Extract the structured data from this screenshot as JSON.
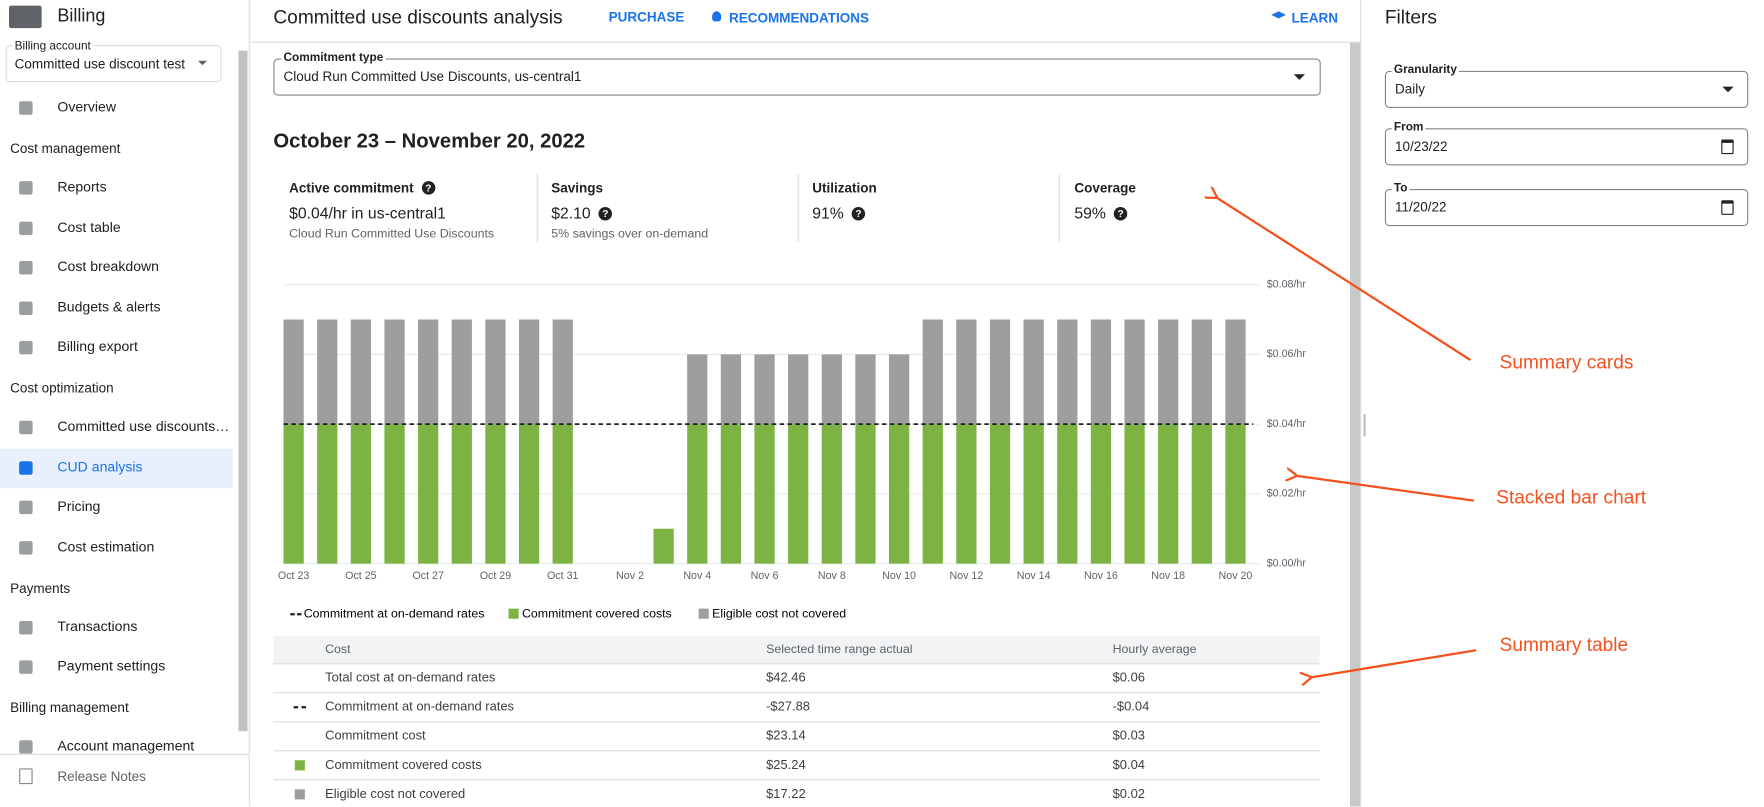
{
  "app": {
    "title": "Billing"
  },
  "sidebar": {
    "account": {
      "label": "Billing account",
      "value": "Committed use discount test"
    },
    "sections": [
      {
        "items": [
          "Overview"
        ]
      },
      {
        "title": "Cost management",
        "items": [
          "Reports",
          "Cost table",
          "Cost breakdown",
          "Budgets & alerts",
          "Billing export"
        ]
      },
      {
        "title": "Cost optimization",
        "items": [
          "Committed use discounts…",
          "CUD analysis",
          "Pricing",
          "Cost estimation"
        ]
      },
      {
        "title": "Payments",
        "items": [
          "Transactions",
          "Payment settings"
        ]
      },
      {
        "title": "Billing management",
        "items": [
          "Account management"
        ]
      }
    ],
    "active": "CUD analysis",
    "footer": "Release Notes"
  },
  "header": {
    "title": "Committed use discounts analysis",
    "tabs": [
      "PURCHASE",
      "RECOMMENDATIONS"
    ],
    "learn": "LEARN"
  },
  "commitment_type": {
    "label": "Commitment type",
    "value": "Cloud Run Committed Use Discounts, us-central1"
  },
  "date_range": "October 23 – November 20, 2022",
  "cards": [
    {
      "title": "Active commitment",
      "value": "$0.04/hr in us-central1",
      "note": "Cloud Run Committed Use Discounts"
    },
    {
      "title": "Savings",
      "value": "$2.10",
      "note": "5% savings over on-demand"
    },
    {
      "title": "Utilization",
      "value": "91%"
    },
    {
      "title": "Coverage",
      "value": "59%"
    }
  ],
  "chart_data": {
    "type": "bar",
    "stacked": true,
    "categories": [
      "Oct 23",
      null,
      "Oct 25",
      null,
      "Oct 27",
      null,
      "Oct 29",
      null,
      "Oct 31",
      null,
      "Nov 2",
      null,
      "Nov 4",
      null,
      "Nov 6",
      null,
      "Nov 8",
      null,
      "Nov 10",
      null,
      "Nov 12",
      null,
      "Nov 14",
      null,
      "Nov 16",
      null,
      "Nov 18",
      null,
      "Nov 20"
    ],
    "series": [
      {
        "name": "Commitment covered costs",
        "color": "#7cb342",
        "values": [
          0.04,
          0.04,
          0.04,
          0.04,
          0.04,
          0.04,
          0.04,
          0.04,
          0.04,
          0,
          0,
          0.01,
          0.04,
          0.04,
          0.04,
          0.04,
          0.04,
          0.04,
          0.04,
          0.04,
          0.04,
          0.04,
          0.04,
          0.04,
          0.04,
          0.04,
          0.04,
          0.04,
          0.04
        ]
      },
      {
        "name": "Eligible cost not covered",
        "color": "#9e9e9e",
        "values": [
          0.03,
          0.03,
          0.03,
          0.03,
          0.03,
          0.03,
          0.03,
          0.03,
          0.03,
          0,
          0,
          0,
          0.02,
          0.02,
          0.02,
          0.02,
          0.02,
          0.02,
          0.02,
          0.03,
          0.03,
          0.03,
          0.03,
          0.03,
          0.03,
          0.03,
          0.03,
          0.03,
          0.03
        ]
      }
    ],
    "commitment": {
      "name": "Commitment at on-demand rates",
      "value": 0.04,
      "color": "#202124"
    },
    "ylim": [
      0,
      0.08
    ],
    "yticks": [
      {
        "value": 0,
        "label": "$0.00/hr"
      },
      {
        "value": 0.02,
        "label": "$0.02/hr"
      },
      {
        "value": 0.04,
        "label": "$0.04/hr"
      },
      {
        "value": 0.06,
        "label": "$0.06/hr"
      },
      {
        "value": 0.08,
        "label": "$0.08/hr"
      }
    ],
    "grid": true
  },
  "table": {
    "header": [
      "Cost",
      "Selected time range actual",
      "Hourly average"
    ],
    "rows": [
      [
        "Total cost at on-demand rates",
        "$42.46",
        "$0.06"
      ],
      [
        "Commitment at on-demand rates",
        "-$27.88",
        "-$0.04"
      ],
      [
        "Commitment cost",
        "$23.14",
        "$0.03"
      ],
      [
        "Commitment covered costs",
        "$25.24",
        "$0.04"
      ],
      [
        "Eligible cost not covered",
        "$17.22",
        "$0.02"
      ]
    ]
  },
  "filters": {
    "title": "Filters",
    "fields": [
      {
        "label": "Granularity",
        "value": "Daily"
      },
      {
        "label": "From",
        "value": "10/23/22"
      },
      {
        "label": "To",
        "value": "11/20/22"
      }
    ]
  },
  "annotations": [
    "Summary cards",
    "Stacked bar chart",
    "Summary table"
  ]
}
